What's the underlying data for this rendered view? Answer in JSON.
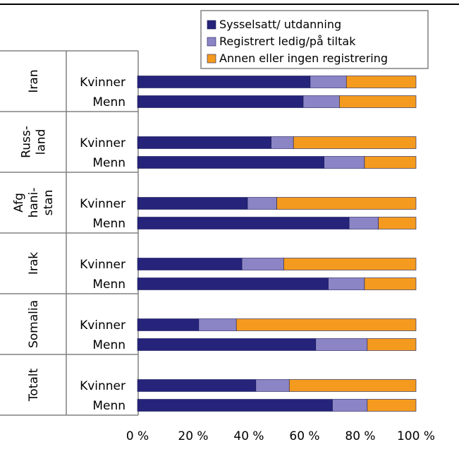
{
  "chart_data": {
    "type": "bar",
    "stacked": true,
    "orientation": "horizontal",
    "title": "",
    "xlabel": "",
    "ylabel": "",
    "xlim": [
      0,
      100
    ],
    "x_ticks": [
      "0 %",
      "20 %",
      "40 %",
      "60 %",
      "80 %",
      "100 %"
    ],
    "grid": false,
    "legend_position": "top-right",
    "legend": [
      {
        "name": "Sysselsatt/ utdanning",
        "color": "#25237a"
      },
      {
        "name": "Registrert ledig/på tiltak",
        "color": "#8b85c6"
      },
      {
        "name": "Annen eller ingen registrering",
        "color": "#f49b1f"
      }
    ],
    "groups": [
      {
        "label_lines": [
          "Iran"
        ],
        "rows": [
          {
            "label": "Kvinner",
            "values": [
              62,
              13,
              25
            ]
          },
          {
            "label": "Menn",
            "values": [
              59.5,
              13,
              27.5
            ]
          }
        ]
      },
      {
        "label_lines": [
          "Russ-",
          "land"
        ],
        "rows": [
          {
            "label": "Kvinner",
            "values": [
              48,
              8,
              44
            ]
          },
          {
            "label": "Menn",
            "values": [
              67,
              14.5,
              18.5
            ]
          }
        ]
      },
      {
        "label_lines": [
          "Afg",
          "hani-",
          "stan"
        ],
        "rows": [
          {
            "label": "Kvinner",
            "values": [
              39.5,
              10.5,
              50
            ]
          },
          {
            "label": "Menn",
            "values": [
              76,
              10.5,
              13.5
            ]
          }
        ]
      },
      {
        "label_lines": [
          "Irak"
        ],
        "rows": [
          {
            "label": "Kvinner",
            "values": [
              37.5,
              15,
              47.5
            ]
          },
          {
            "label": "Menn",
            "values": [
              68.5,
              13,
              18.5
            ]
          }
        ]
      },
      {
        "label_lines": [
          "Somalia"
        ],
        "rows": [
          {
            "label": "Kvinner",
            "values": [
              22,
              13.5,
              64.5
            ]
          },
          {
            "label": "Menn",
            "values": [
              64,
              18.5,
              17.5
            ]
          }
        ]
      },
      {
        "label_lines": [
          "Totalt"
        ],
        "rows": [
          {
            "label": "Kvinner",
            "values": [
              42.5,
              12,
              45.5
            ]
          },
          {
            "label": "Menn",
            "values": [
              70,
              12.5,
              17.5
            ]
          }
        ]
      }
    ]
  }
}
